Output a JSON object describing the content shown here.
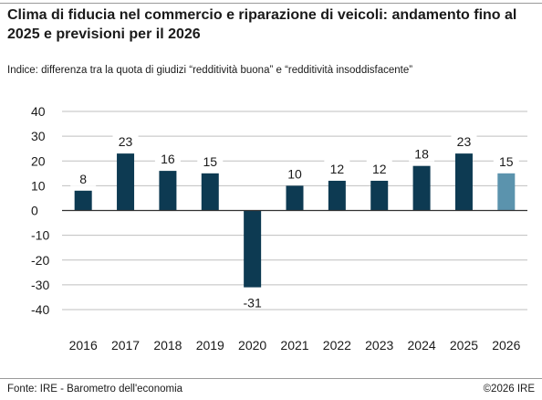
{
  "header": {
    "title": "Clima di fiducia nel commercio e riparazione di veicoli: andamento fino al 2025 e previsioni per il 2026",
    "subtitle": "Indice: differenza tra la quota di giudizi “redditività buona” e “redditività insoddisfacente”"
  },
  "footer": {
    "source": "Fonte: IRE - Barometro dell'economia",
    "copyright": "©2026 IRE"
  },
  "colors": {
    "actual": "#0d3a52",
    "forecast": "#5b93ad",
    "grid": "#bfbfbf",
    "zero": "#333333",
    "rule": "#9a9a9a"
  },
  "chart_data": {
    "type": "bar",
    "categories": [
      "2016",
      "2017",
      "2018",
      "2019",
      "2020",
      "2021",
      "2022",
      "2023",
      "2024",
      "2025",
      "2026"
    ],
    "values": [
      8,
      23,
      16,
      15,
      -31,
      10,
      12,
      12,
      18,
      23,
      15
    ],
    "value_labels": [
      "8",
      "23",
      "16",
      "15",
      "-31",
      "10",
      "12",
      "12",
      "18",
      "23",
      "15"
    ],
    "forecast": [
      false,
      false,
      false,
      false,
      false,
      false,
      false,
      false,
      false,
      false,
      true
    ],
    "ylim": [
      -40,
      40
    ],
    "yticks": [
      40,
      30,
      20,
      10,
      0,
      -10,
      -20,
      -30,
      -40
    ],
    "grid": true,
    "xlabel": "",
    "ylabel": ""
  }
}
